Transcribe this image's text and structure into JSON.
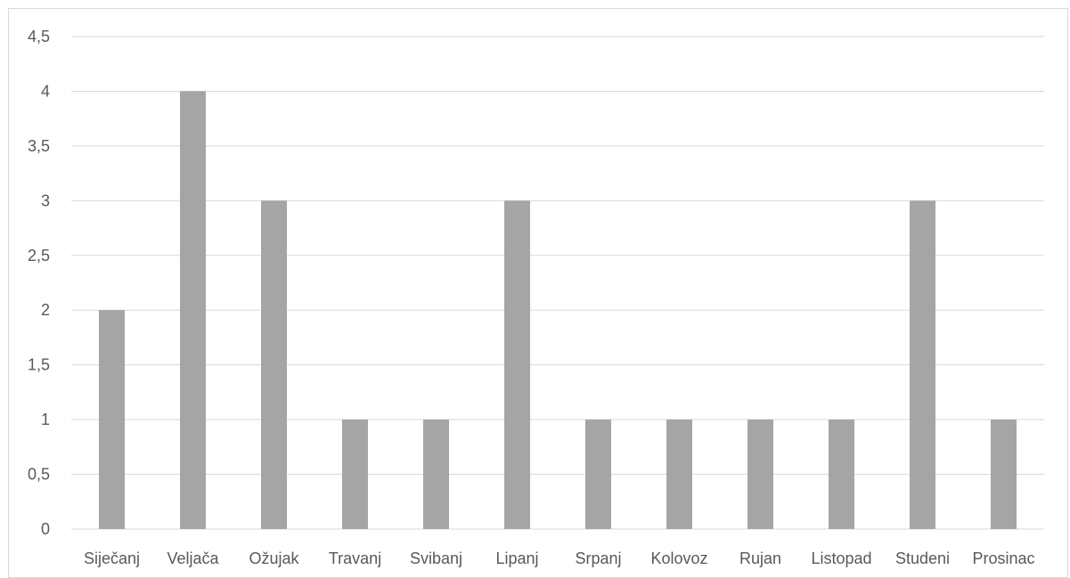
{
  "chart_data": {
    "type": "bar",
    "title": "",
    "xlabel": "",
    "ylabel": "",
    "categories": [
      "Siječanj",
      "Veljača",
      "Ožujak",
      "Travanj",
      "Svibanj",
      "Lipanj",
      "Srpanj",
      "Kolovoz",
      "Rujan",
      "Listopad",
      "Studeni",
      "Prosinac"
    ],
    "values": [
      2,
      4,
      3,
      1,
      1,
      3,
      1,
      1,
      1,
      1,
      3,
      1
    ],
    "ylim": [
      0,
      4.5
    ],
    "yticks": [
      0,
      0.5,
      1,
      1.5,
      2,
      2.5,
      3,
      3.5,
      4,
      4.5
    ],
    "ytick_labels": [
      "0",
      "0,5",
      "1",
      "1,5",
      "2",
      "2,5",
      "3",
      "3,5",
      "4",
      "4,5"
    ],
    "grid": true,
    "legend": "none",
    "colors": {
      "bar": "#a5a5a5",
      "grid": "#d9d9d9",
      "text": "#595959",
      "axis": "#d9d9d9"
    }
  }
}
